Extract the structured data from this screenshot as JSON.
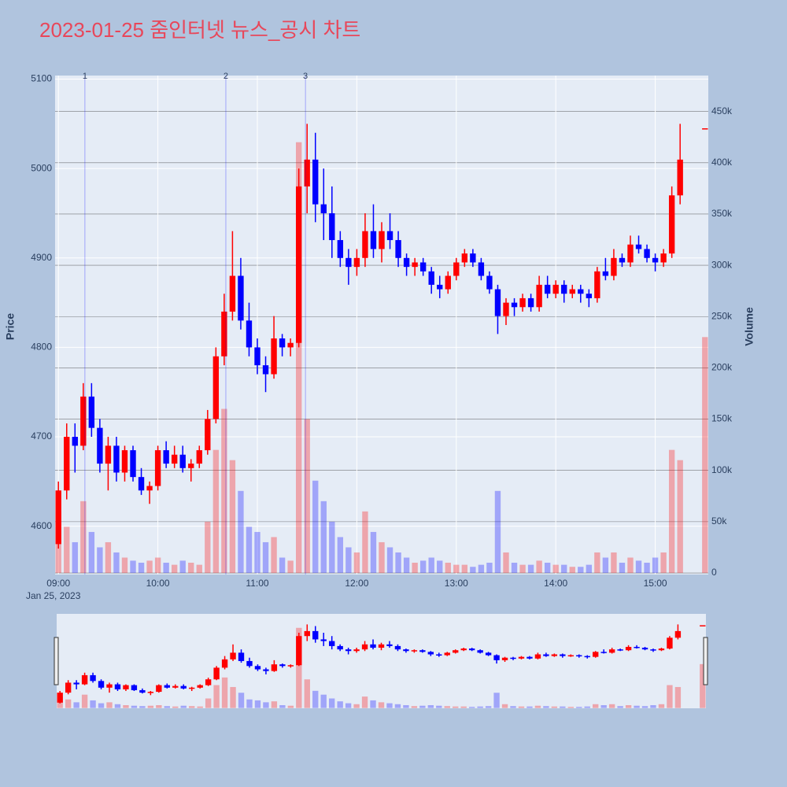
{
  "chart_data": {
    "type": "candlestick",
    "title": "2023-01-25 줌인터넷 뉴스_공시 차트",
    "y_title": "Price",
    "y2_title": "Volume",
    "x_date_label": "Jan 25, 2023",
    "increasing_color": "#ff0000",
    "decreasing_color": "#0000ff",
    "xlim": [
      "2023-01-25 08:58",
      "2023-01-25 15:32"
    ],
    "xticks": [
      {
        "value": "2023-01-25 09:00",
        "label": "09:00"
      },
      {
        "value": "2023-01-25 10:00",
        "label": "10:00"
      },
      {
        "value": "2023-01-25 11:00",
        "label": "11:00"
      },
      {
        "value": "2023-01-25 12:00",
        "label": "12:00"
      },
      {
        "value": "2023-01-25 13:00",
        "label": "13:00"
      },
      {
        "value": "2023-01-25 14:00",
        "label": "14:00"
      },
      {
        "value": "2023-01-25 15:00",
        "label": "15:00"
      }
    ],
    "ylim": [
      4546,
      5104
    ],
    "yticks": [
      4600,
      4700,
      4800,
      4900,
      5000,
      5100
    ],
    "y2lim": [
      -1500,
      485000
    ],
    "y2ticks": [
      0,
      {
        "value": 50000,
        "label": "50k"
      },
      {
        "value": 100000,
        "label": "100k"
      },
      {
        "value": 150000,
        "label": "150k"
      },
      {
        "value": 200000,
        "label": "200k"
      },
      {
        "value": 250000,
        "label": "250k"
      },
      {
        "value": 300000,
        "label": "300k"
      },
      {
        "value": 350000,
        "label": "350k"
      },
      {
        "value": 400000,
        "label": "400k"
      },
      {
        "value": 450000,
        "label": "450k"
      }
    ],
    "events": [
      {
        "x": "2023-01-25 09:16",
        "label": "1"
      },
      {
        "x": "2023-01-25 10:41",
        "label": "2"
      },
      {
        "x": "2023-01-25 11:29",
        "label": "3"
      }
    ],
    "x": [
      "2023-01-25 09:00",
      "2023-01-25 09:05",
      "2023-01-25 09:10",
      "2023-01-25 09:15",
      "2023-01-25 09:20",
      "2023-01-25 09:25",
      "2023-01-25 09:30",
      "2023-01-25 09:35",
      "2023-01-25 09:40",
      "2023-01-25 09:45",
      "2023-01-25 09:50",
      "2023-01-25 09:55",
      "2023-01-25 10:00",
      "2023-01-25 10:05",
      "2023-01-25 10:10",
      "2023-01-25 10:15",
      "2023-01-25 10:20",
      "2023-01-25 10:25",
      "2023-01-25 10:30",
      "2023-01-25 10:35",
      "2023-01-25 10:40",
      "2023-01-25 10:45",
      "2023-01-25 10:50",
      "2023-01-25 10:55",
      "2023-01-25 11:00",
      "2023-01-25 11:05",
      "2023-01-25 11:10",
      "2023-01-25 11:15",
      "2023-01-25 11:20",
      "2023-01-25 11:25",
      "2023-01-25 11:30",
      "2023-01-25 11:35",
      "2023-01-25 11:40",
      "2023-01-25 11:45",
      "2023-01-25 11:50",
      "2023-01-25 11:55",
      "2023-01-25 12:00",
      "2023-01-25 12:05",
      "2023-01-25 12:10",
      "2023-01-25 12:15",
      "2023-01-25 12:20",
      "2023-01-25 12:25",
      "2023-01-25 12:30",
      "2023-01-25 12:35",
      "2023-01-25 12:40",
      "2023-01-25 12:45",
      "2023-01-25 12:50",
      "2023-01-25 12:55",
      "2023-01-25 13:00",
      "2023-01-25 13:05",
      "2023-01-25 13:10",
      "2023-01-25 13:15",
      "2023-01-25 13:20",
      "2023-01-25 13:25",
      "2023-01-25 13:30",
      "2023-01-25 13:35",
      "2023-01-25 13:40",
      "2023-01-25 13:45",
      "2023-01-25 13:50",
      "2023-01-25 13:55",
      "2023-01-25 14:00",
      "2023-01-25 14:05",
      "2023-01-25 14:10",
      "2023-01-25 14:15",
      "2023-01-25 14:20",
      "2023-01-25 14:25",
      "2023-01-25 14:30",
      "2023-01-25 14:35",
      "2023-01-25 14:40",
      "2023-01-25 14:45",
      "2023-01-25 14:50",
      "2023-01-25 14:55",
      "2023-01-25 15:00",
      "2023-01-25 15:05",
      "2023-01-25 15:10",
      "2023-01-25 15:15",
      "2023-01-25 15:30"
    ],
    "open": [
      4580,
      4640,
      4700,
      4690,
      4745,
      4710,
      4670,
      4690,
      4660,
      4685,
      4655,
      4640,
      4645,
      4685,
      4670,
      4680,
      4665,
      4670,
      4685,
      4720,
      4790,
      4840,
      4880,
      4830,
      4800,
      4780,
      4770,
      4810,
      4800,
      4805,
      4980,
      5010,
      4960,
      4950,
      4920,
      4900,
      4890,
      4900,
      4930,
      4910,
      4930,
      4920,
      4900,
      4890,
      4895,
      4885,
      4870,
      4865,
      4880,
      4895,
      4905,
      4895,
      4880,
      4865,
      4835,
      4850,
      4845,
      4855,
      4845,
      4870,
      4860,
      4870,
      4860,
      4865,
      4860,
      4855,
      4885,
      4880,
      4900,
      4895,
      4915,
      4910,
      4900,
      4895,
      4905,
      4970,
      5045
    ],
    "high": [
      4650,
      4715,
      4715,
      4760,
      4760,
      4720,
      4700,
      4700,
      4690,
      4690,
      4665,
      4650,
      4690,
      4695,
      4690,
      4690,
      4675,
      4690,
      4730,
      4800,
      4860,
      4930,
      4900,
      4850,
      4810,
      4790,
      4835,
      4815,
      4810,
      5000,
      5050,
      5040,
      5000,
      4980,
      4930,
      4910,
      4910,
      4950,
      4960,
      4940,
      4950,
      4930,
      4905,
      4900,
      4900,
      4890,
      4880,
      4885,
      4900,
      4910,
      4910,
      4900,
      4885,
      4870,
      4855,
      4855,
      4860,
      4860,
      4880,
      4880,
      4875,
      4875,
      4870,
      4870,
      4865,
      4890,
      4900,
      4910,
      4905,
      4925,
      4925,
      4915,
      4905,
      4910,
      4980,
      5050,
      5045
    ],
    "low": [
      4575,
      4630,
      4660,
      4685,
      4700,
      4660,
      4640,
      4650,
      4650,
      4650,
      4635,
      4625,
      4640,
      4665,
      4665,
      4660,
      4650,
      4665,
      4680,
      4715,
      4780,
      4830,
      4820,
      4790,
      4770,
      4750,
      4765,
      4790,
      4790,
      4800,
      4950,
      4940,
      4920,
      4900,
      4890,
      4870,
      4880,
      4890,
      4900,
      4895,
      4910,
      4890,
      4880,
      4880,
      4880,
      4860,
      4855,
      4860,
      4875,
      4890,
      4890,
      4875,
      4860,
      4815,
      4825,
      4835,
      4840,
      4840,
      4840,
      4855,
      4855,
      4850,
      4855,
      4850,
      4845,
      4850,
      4875,
      4875,
      4890,
      4890,
      4905,
      4895,
      4885,
      4890,
      4900,
      4960,
      5045
    ],
    "close": [
      4640,
      4700,
      4690,
      4745,
      4710,
      4670,
      4690,
      4660,
      4685,
      4655,
      4640,
      4645,
      4685,
      4670,
      4680,
      4665,
      4670,
      4685,
      4720,
      4790,
      4840,
      4880,
      4830,
      4800,
      4780,
      4770,
      4810,
      4800,
      4805,
      4980,
      5010,
      4960,
      4950,
      4920,
      4900,
      4890,
      4900,
      4930,
      4910,
      4930,
      4920,
      4900,
      4890,
      4895,
      4885,
      4870,
      4865,
      4880,
      4895,
      4905,
      4895,
      4880,
      4865,
      4835,
      4850,
      4845,
      4855,
      4845,
      4870,
      4860,
      4870,
      4860,
      4865,
      4860,
      4855,
      4885,
      4880,
      4900,
      4895,
      4915,
      4910,
      4900,
      4895,
      4905,
      4970,
      5010,
      5045
    ],
    "volume": [
      60000,
      45000,
      30000,
      70000,
      40000,
      25000,
      30000,
      20000,
      15000,
      12000,
      10000,
      12000,
      15000,
      10000,
      8000,
      12000,
      10000,
      8000,
      50000,
      120000,
      160000,
      110000,
      80000,
      45000,
      40000,
      30000,
      35000,
      15000,
      12000,
      420000,
      150000,
      90000,
      70000,
      50000,
      35000,
      25000,
      20000,
      60000,
      40000,
      30000,
      25000,
      20000,
      15000,
      10000,
      12000,
      15000,
      12000,
      10000,
      8000,
      8000,
      6000,
      8000,
      10000,
      80000,
      20000,
      10000,
      8000,
      8000,
      12000,
      10000,
      8000,
      8000,
      6000,
      6000,
      8000,
      20000,
      15000,
      20000,
      10000,
      15000,
      12000,
      10000,
      15000,
      20000,
      120000,
      110000,
      230000
    ]
  }
}
